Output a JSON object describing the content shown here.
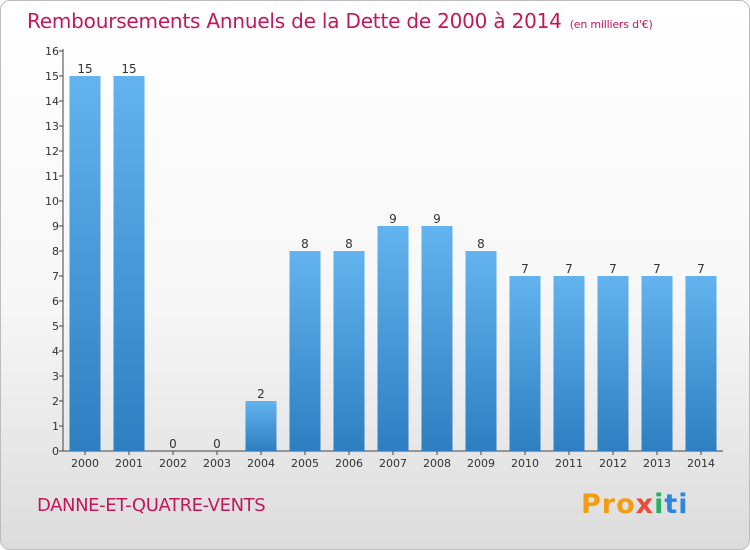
{
  "chart_data": {
    "type": "bar",
    "title": "Remboursements Annuels de la Dette de 2000 à 2014",
    "unit_note": "(en milliers d'€)",
    "categories": [
      "2000",
      "2001",
      "2002",
      "2003",
      "2004",
      "2005",
      "2006",
      "2007",
      "2008",
      "2009",
      "2010",
      "2011",
      "2012",
      "2013",
      "2014"
    ],
    "values": [
      15,
      15,
      0,
      0,
      2,
      8,
      8,
      9,
      9,
      8,
      7,
      7,
      7,
      7,
      7
    ],
    "data_labels": [
      "15",
      "15",
      "0",
      "0",
      "2",
      "8",
      "8",
      "9",
      "9",
      "8",
      "7",
      "7",
      "7",
      "7",
      "7"
    ],
    "yticks": [
      "0",
      "1",
      "2",
      "3",
      "4",
      "5",
      "6",
      "7",
      "8",
      "9",
      "10",
      "11",
      "12",
      "13",
      "14",
      "15",
      "16"
    ],
    "ylim": [
      0,
      16
    ],
    "grid": false,
    "bar_color": "#4a9fe0"
  },
  "footer": {
    "commune": "DANNE-ET-QUATRE-VENTS",
    "logo_parts": [
      "Pro",
      "x",
      "i",
      "ti"
    ]
  }
}
